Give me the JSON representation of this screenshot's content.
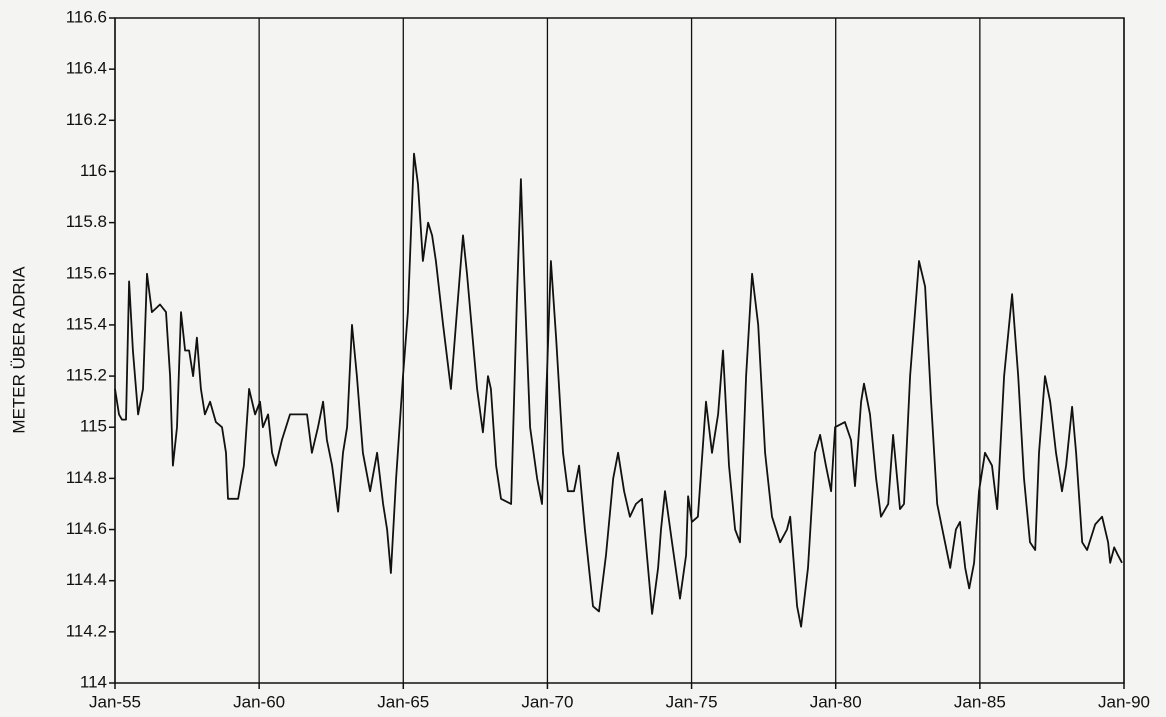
{
  "chart_data": {
    "type": "line",
    "y_label": "METER ÜBER ADRIA",
    "x": [
      55.0,
      55.14,
      55.24,
      55.38,
      55.49,
      55.62,
      55.8,
      55.97,
      56.11,
      56.28,
      56.56,
      56.77,
      56.91,
      57.01,
      57.15,
      57.29,
      57.43,
      57.57,
      57.71,
      57.84,
      57.98,
      58.12,
      58.3,
      58.5,
      58.71,
      58.85,
      58.92,
      59.27,
      59.47,
      59.65,
      59.86,
      60.03,
      60.13,
      60.31,
      60.45,
      60.58,
      60.79,
      61.07,
      61.42,
      61.66,
      61.83,
      62.04,
      62.22,
      62.35,
      62.53,
      62.74,
      62.91,
      63.05,
      63.22,
      63.39,
      63.6,
      63.85,
      64.09,
      64.3,
      64.44,
      64.57,
      64.75,
      64.99,
      65.16,
      65.37,
      65.51,
      65.68,
      65.86,
      66.0,
      66.13,
      66.38,
      66.65,
      66.86,
      67.07,
      67.21,
      67.56,
      67.76,
      67.94,
      68.04,
      68.22,
      68.39,
      68.74,
      68.94,
      69.08,
      69.19,
      69.4,
      69.64,
      69.81,
      69.98,
      70.12,
      70.3,
      70.54,
      70.71,
      70.92,
      71.1,
      71.3,
      71.58,
      71.79,
      72.03,
      72.28,
      72.45,
      72.66,
      72.86,
      73.07,
      73.28,
      73.45,
      73.63,
      73.84,
      73.94,
      74.08,
      74.32,
      74.6,
      74.81,
      74.88,
      75.01,
      75.22,
      75.5,
      75.71,
      75.92,
      76.09,
      76.3,
      76.51,
      76.68,
      76.89,
      77.1,
      77.31,
      77.55,
      77.79,
      78.07,
      78.31,
      78.42,
      78.66,
      78.8,
      79.04,
      79.28,
      79.46,
      79.66,
      79.84,
      79.98,
      80.32,
      80.53,
      80.67,
      80.88,
      80.98,
      81.19,
      81.4,
      81.57,
      81.82,
      81.99,
      82.23,
      82.37,
      82.58,
      82.89,
      83.1,
      83.31,
      83.52,
      83.79,
      83.97,
      84.17,
      84.31,
      84.49,
      84.63,
      84.8,
      84.97,
      85.18,
      85.42,
      85.6,
      85.84,
      86.12,
      86.33,
      86.53,
      86.74,
      86.92,
      87.05,
      87.26,
      87.44,
      87.64,
      87.85,
      87.99,
      88.2,
      88.34,
      88.55,
      88.72,
      89.0,
      89.24,
      89.45,
      89.52,
      89.66,
      89.79,
      89.93
    ],
    "series": [
      {
        "color": "#111111",
        "values": [
          115.15,
          115.05,
          115.03,
          115.03,
          115.57,
          115.3,
          115.05,
          115.15,
          115.6,
          115.45,
          115.48,
          115.45,
          115.2,
          114.85,
          115.0,
          115.45,
          115.3,
          115.3,
          115.2,
          115.35,
          115.15,
          115.05,
          115.1,
          115.02,
          115.0,
          114.9,
          114.72,
          114.72,
          114.85,
          115.15,
          115.05,
          115.1,
          115.0,
          115.05,
          114.9,
          114.85,
          114.95,
          115.05,
          115.05,
          115.05,
          114.9,
          115.0,
          115.1,
          114.95,
          114.85,
          114.67,
          114.9,
          115.0,
          115.4,
          115.2,
          114.9,
          114.75,
          114.9,
          114.7,
          114.6,
          114.43,
          114.8,
          115.2,
          115.45,
          116.07,
          115.95,
          115.65,
          115.8,
          115.75,
          115.65,
          115.4,
          115.15,
          115.45,
          115.75,
          115.6,
          115.15,
          114.98,
          115.2,
          115.15,
          114.85,
          114.72,
          114.7,
          115.5,
          115.97,
          115.6,
          115.0,
          114.8,
          114.7,
          115.2,
          115.65,
          115.35,
          114.9,
          114.75,
          114.75,
          114.85,
          114.6,
          114.3,
          114.28,
          114.5,
          114.8,
          114.9,
          114.75,
          114.65,
          114.7,
          114.72,
          114.5,
          114.27,
          114.45,
          114.6,
          114.75,
          114.55,
          114.33,
          114.5,
          114.73,
          114.63,
          114.65,
          115.1,
          114.9,
          115.05,
          115.3,
          114.85,
          114.6,
          114.55,
          115.2,
          115.6,
          115.4,
          114.9,
          114.65,
          114.55,
          114.6,
          114.65,
          114.3,
          114.22,
          114.45,
          114.9,
          114.97,
          114.85,
          114.75,
          115.0,
          115.02,
          114.95,
          114.77,
          115.1,
          115.17,
          115.05,
          114.8,
          114.65,
          114.7,
          114.97,
          114.68,
          114.7,
          115.2,
          115.65,
          115.55,
          115.1,
          114.7,
          114.55,
          114.45,
          114.6,
          114.63,
          114.45,
          114.37,
          114.47,
          114.75,
          114.9,
          114.85,
          114.68,
          115.2,
          115.52,
          115.2,
          114.8,
          114.55,
          114.52,
          114.9,
          115.2,
          115.1,
          114.9,
          114.75,
          114.85,
          115.08,
          114.9,
          114.55,
          114.52,
          114.62,
          114.65,
          114.55,
          114.47,
          114.53,
          114.5,
          114.47
        ]
      }
    ],
    "xlim": [
      55,
      90
    ],
    "xticks": [
      {
        "value": 55,
        "label": "Jan-55"
      },
      {
        "value": 60,
        "label": "Jan-60"
      },
      {
        "value": 65,
        "label": "Jan-65"
      },
      {
        "value": 70,
        "label": "Jan-70"
      },
      {
        "value": 75,
        "label": "Jan-75"
      },
      {
        "value": 80,
        "label": "Jan-80"
      },
      {
        "value": 85,
        "label": "Jan-85"
      },
      {
        "value": 90,
        "label": "Jan-90"
      }
    ],
    "ylim": [
      114,
      116.6
    ],
    "yticks": [
      114,
      114.2,
      114.4,
      114.6,
      114.8,
      115,
      115.2,
      115.4,
      115.6,
      115.8,
      116,
      116.2,
      116.4,
      116.6
    ],
    "grid_x": true
  }
}
